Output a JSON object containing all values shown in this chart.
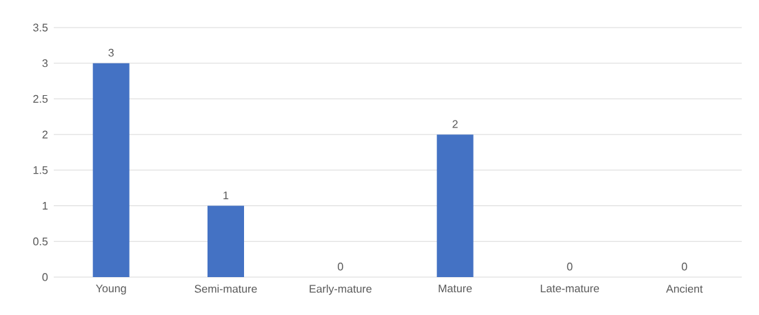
{
  "chart_data": {
    "type": "bar",
    "categories": [
      "Young",
      "Semi-mature",
      "Early-mature",
      "Mature",
      "Late-mature",
      "Ancient"
    ],
    "values": [
      3,
      1,
      0,
      2,
      0,
      0
    ],
    "color": "#4472c4",
    "ylim": [
      0,
      3.5
    ],
    "yticks": [
      0,
      0.5,
      1,
      1.5,
      2,
      2.5,
      3,
      3.5
    ],
    "grid": "y",
    "data_labels": true
  }
}
